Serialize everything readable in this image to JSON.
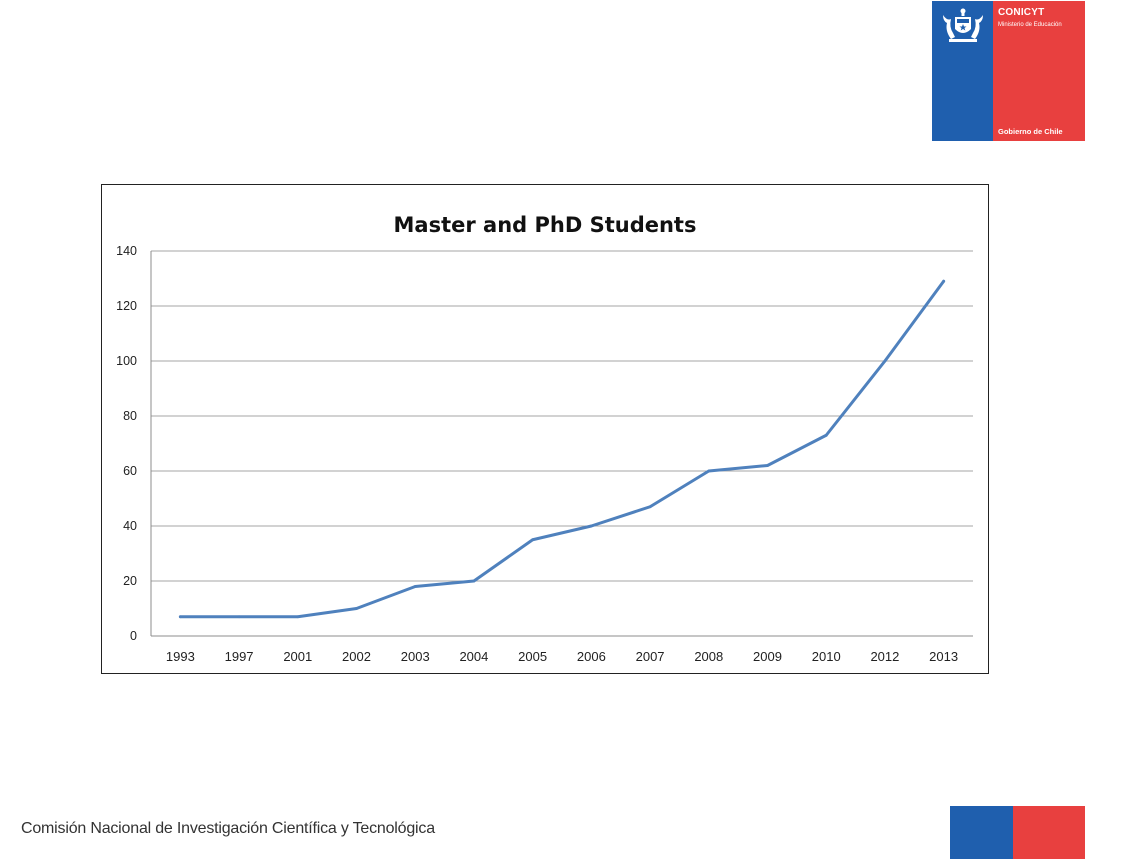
{
  "logo": {
    "name": "CONICYT",
    "ministry": "Ministerio de Educación",
    "government": "Gobierno de Chile",
    "blue": "#1f5fae",
    "red": "#e8403f"
  },
  "footer": {
    "text": "Comisión Nacional de Investigación Científica y Tecnológica",
    "blue": "#1f5fae",
    "red": "#e8403f"
  },
  "chart_data": {
    "type": "line",
    "title": "Master and PhD Students",
    "xlabel": "",
    "ylabel": "",
    "categories": [
      "1993",
      "1997",
      "2001",
      "2002",
      "2003",
      "2004",
      "2005",
      "2006",
      "2007",
      "2008",
      "2009",
      "2010",
      "2012",
      "2013"
    ],
    "values": [
      7,
      7,
      7,
      10,
      18,
      20,
      35,
      40,
      47,
      60,
      62,
      73,
      100,
      129
    ],
    "ylim": [
      0,
      140
    ],
    "yticks": [
      0,
      20,
      40,
      60,
      80,
      100,
      120,
      140
    ],
    "grid": true,
    "legend": "none",
    "line_color": "#4f81bd",
    "grid_color": "#a6a6a6"
  }
}
